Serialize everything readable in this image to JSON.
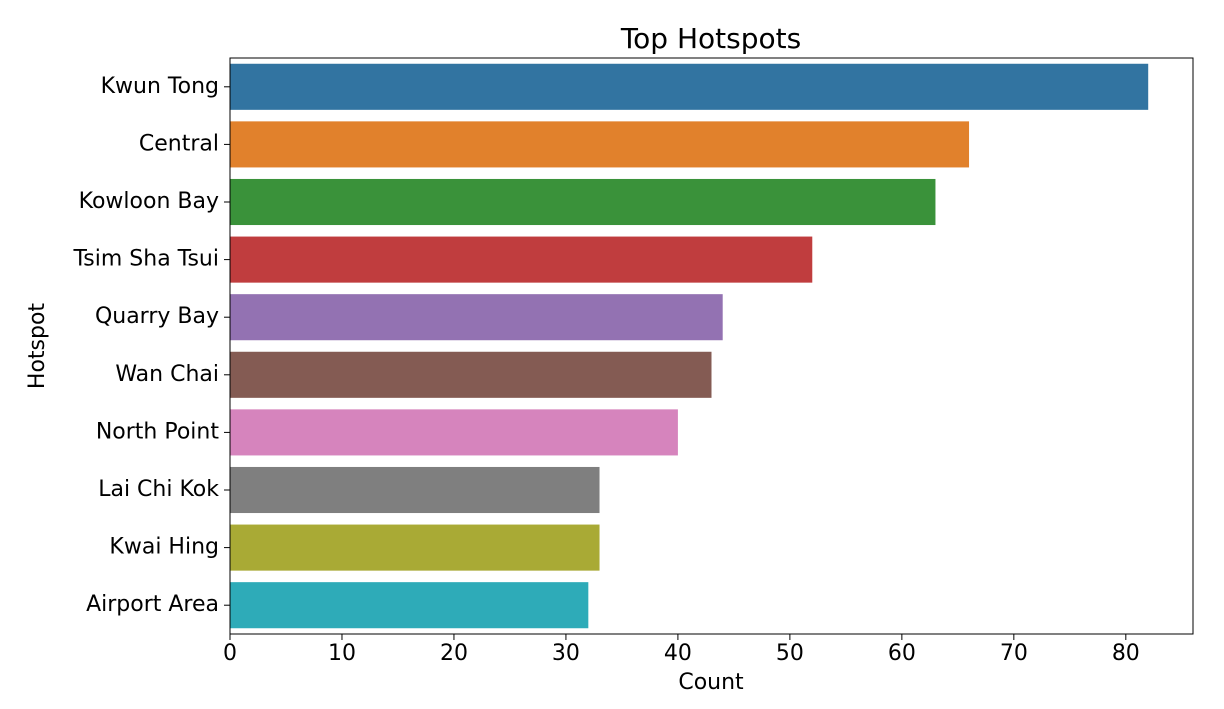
{
  "chart_data": {
    "type": "barh",
    "title": "Top Hotspots",
    "x_label": "Count",
    "y_label": "Hotspot",
    "categories": [
      "Kwun Tong",
      "Central",
      "Kowloon Bay",
      "Tsim Sha Tsui",
      "Quarry Bay",
      "Wan Chai",
      "North Point",
      "Lai Chi Kok",
      "Kwai Hing",
      "Airport Area"
    ],
    "values": [
      82,
      66,
      63,
      52,
      44,
      43,
      40,
      33,
      33,
      32
    ],
    "colors": [
      "#3274a1",
      "#e1812c",
      "#3a923a",
      "#c03d3e",
      "#9372b2",
      "#845b53",
      "#d684bd",
      "#7f7f7f",
      "#a9aa35",
      "#2eabb8"
    ],
    "xlim": [
      0,
      86
    ],
    "xticks": [
      0,
      10,
      20,
      30,
      40,
      50,
      60,
      70,
      80
    ]
  }
}
